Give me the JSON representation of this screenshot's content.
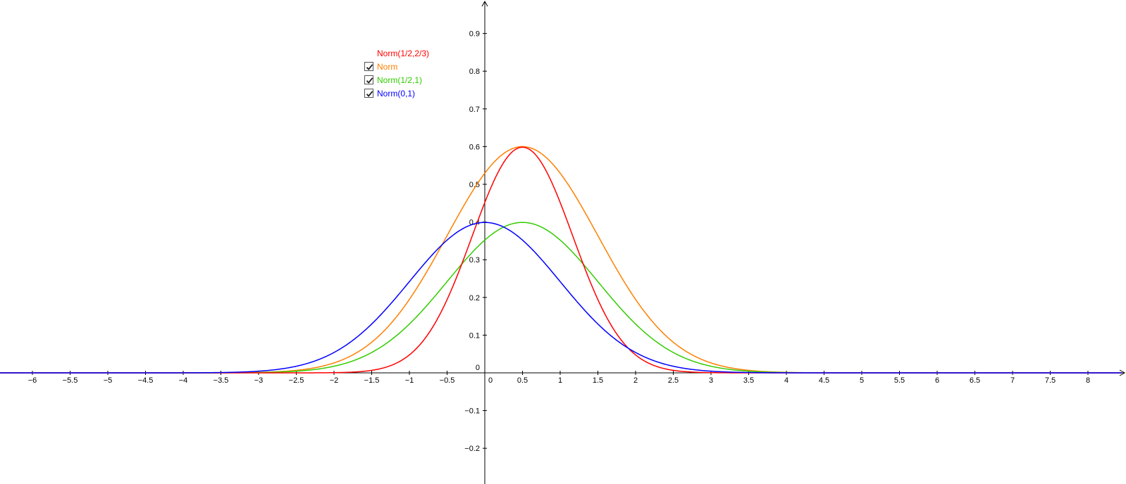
{
  "chart_data": {
    "type": "line",
    "x_ticks": [
      "−6",
      "−5.5",
      "−5",
      "−4.5",
      "−4",
      "−3.5",
      "−3",
      "−2.5",
      "−2",
      "−1.5",
      "−1",
      "−0.5",
      "0",
      "0.5",
      "1",
      "1.5",
      "2",
      "2.5",
      "3",
      "3.5",
      "4",
      "4.5",
      "5",
      "5.5",
      "6",
      "6.5",
      "7",
      "7.5",
      "8"
    ],
    "y_ticks": [
      "0.9",
      "0.8",
      "0.7",
      "0.6",
      "0.5",
      "0.4",
      "0.3",
      "0.2",
      "0.1",
      "0",
      "−0.1",
      "−0.2"
    ],
    "xlim": [
      -6.45,
      8.45
    ],
    "ylim": [
      -0.29,
      0.98
    ],
    "grid": false,
    "legend_position": "top-left",
    "series": [
      {
        "name": "Norm(1/2,2/3)",
        "mean": 0.5,
        "sd": 0.6667,
        "color": "#ff0000",
        "visible": true,
        "checkbox": false
      },
      {
        "name": "Norm",
        "mean": 0.5,
        "sd": 0.6667,
        "scale": 1,
        "color": "#ff7f00",
        "visible": true,
        "checkbox": true,
        "checked": true,
        "note_values_peak": 0.6
      },
      {
        "name": "Norm(1/2,1)",
        "mean": 0.5,
        "sd": 1,
        "color": "#33cc00",
        "visible": true,
        "checkbox": true,
        "checked": true
      },
      {
        "name": "Norm(0,1)",
        "mean": 0,
        "sd": 1,
        "color": "#0000ff",
        "visible": true,
        "checkbox": true,
        "checked": true
      }
    ]
  }
}
